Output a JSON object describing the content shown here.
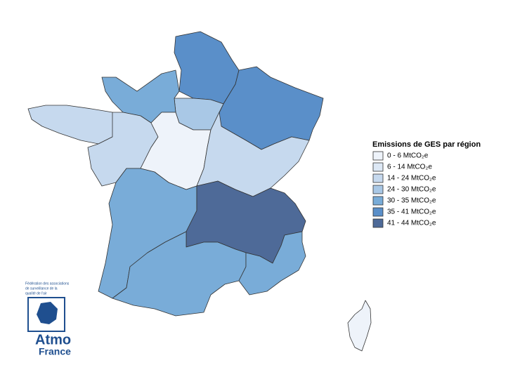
{
  "legend": {
    "title": "Emissions de GES par région",
    "items": [
      {
        "label": "0 - 6 MtCO₂e",
        "color": "#eef3fa"
      },
      {
        "label": "6 - 14 MtCO₂e",
        "color": "#dde8f5"
      },
      {
        "label": "14 - 24 MtCO₂e",
        "color": "#c6d9ee"
      },
      {
        "label": "24 - 30 MtCO₂e",
        "color": "#a9c8e6"
      },
      {
        "label": "30 - 35 MtCO₂e",
        "color": "#79acd8"
      },
      {
        "label": "35 - 41 MtCO₂e",
        "color": "#5a8fc9"
      },
      {
        "label": "41 - 44 MtCO₂e",
        "color": "#4e6a98"
      }
    ]
  },
  "logo": {
    "lines": [
      "Fédération des associations",
      "de surveillance de la",
      "qualité de l'air"
    ],
    "name": "Atmo",
    "country": "France"
  }
}
